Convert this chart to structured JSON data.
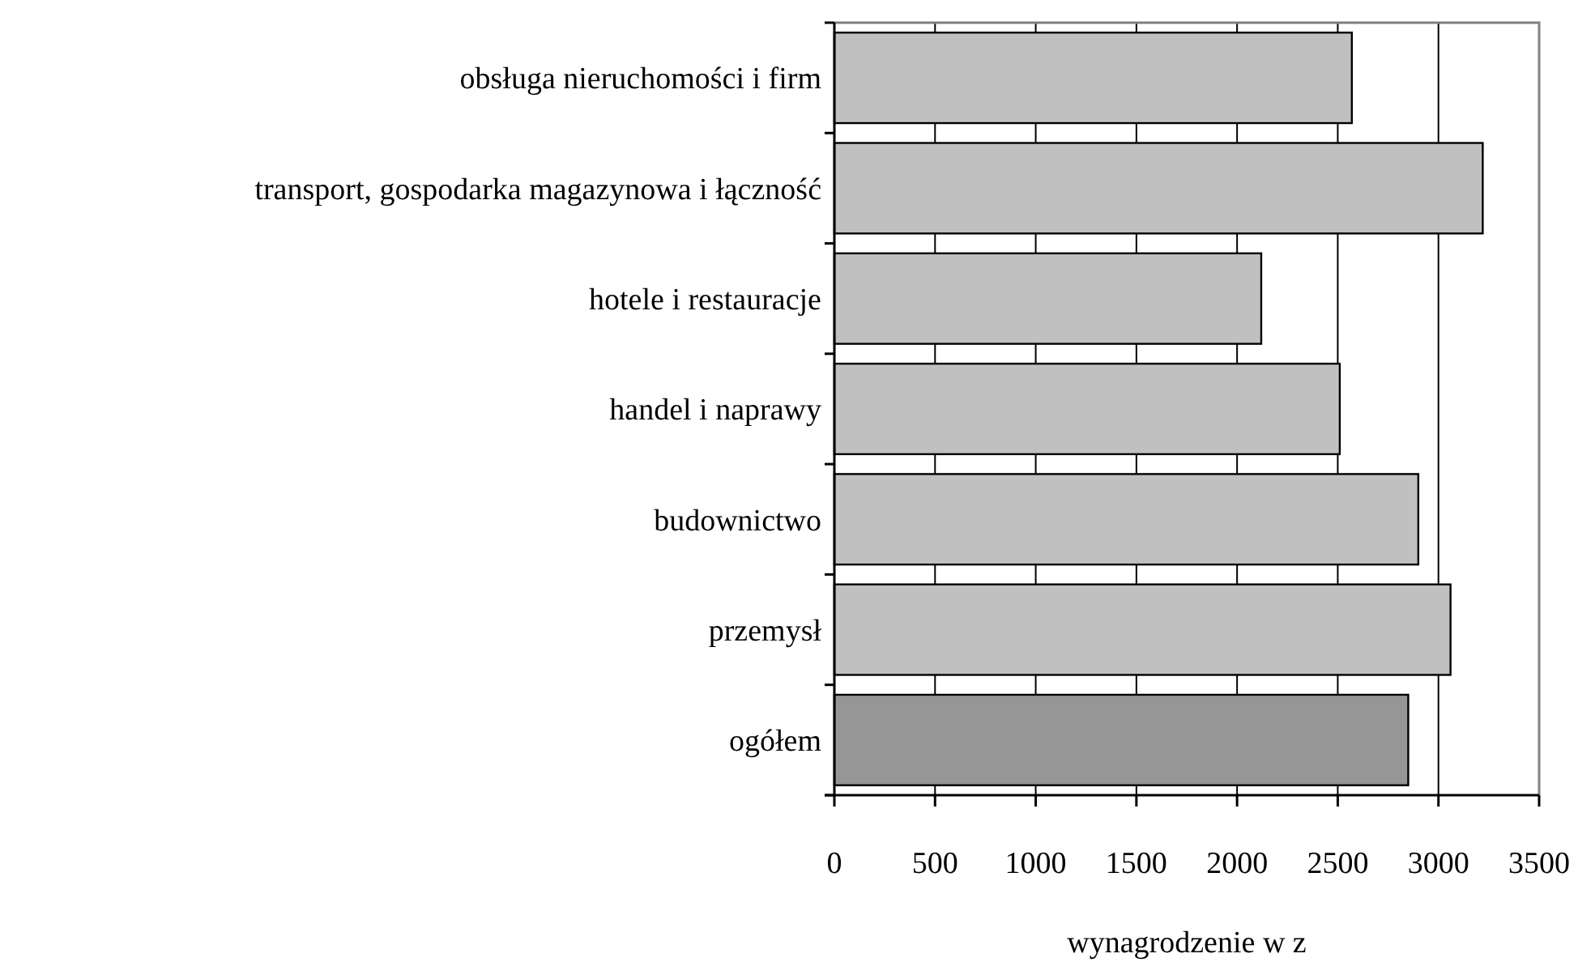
{
  "chart_data": {
    "type": "bar",
    "orientation": "horizontal",
    "categories": [
      "obsługa nieruchomości i firm",
      "transport, gospodarka magazynowa i łączność",
      "hotele i restauracje",
      "handel i naprawy",
      "budownictwo",
      "przemysł",
      "ogółem"
    ],
    "values": [
      2570,
      3220,
      2120,
      2510,
      2900,
      3060,
      2850
    ],
    "colors": [
      "#c0c0c0",
      "#c0c0c0",
      "#c0c0c0",
      "#c0c0c0",
      "#c0c0c0",
      "#c0c0c0",
      "#969696"
    ],
    "xlabel": "wynagrodzenie w z",
    "xlim": [
      0,
      3500
    ],
    "xticks": [
      0,
      500,
      1000,
      1500,
      2000,
      2500,
      3000,
      3500
    ],
    "grid": "x"
  }
}
